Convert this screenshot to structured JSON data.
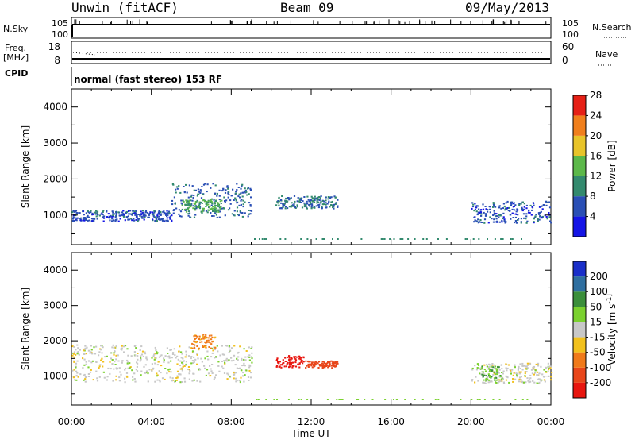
{
  "header": {
    "station": "Unwin (fitACF)",
    "beam": "Beam 09",
    "date": "09/May/2013"
  },
  "mode_text": "normal (fast stereo) 153 RF",
  "side_labels": {
    "nsky": "N.Sky",
    "freq_line1": "Freq.",
    "freq_line2": "[MHz]",
    "cpid": "CPID",
    "nsearch": "N.Search",
    "nave": "Nave"
  },
  "noise_panel": {
    "left_ticks": [
      "10^5",
      "10^0"
    ],
    "right_ticks": [
      "10^5",
      "10^0"
    ]
  },
  "freq_panel": {
    "left_ticks": [
      "18",
      "8"
    ],
    "right_ticks": [
      "60",
      "0"
    ]
  },
  "chart_data": [
    {
      "type": "heatmap",
      "panel": "power",
      "ylabel": "Slant Range [km]",
      "yticks": [
        "1000",
        "2000",
        "3000",
        "4000"
      ],
      "ylim": [
        180,
        4500
      ],
      "colorbar_label": "Power [dB]",
      "colorbar_ticks": [
        "4",
        "8",
        "12",
        "16",
        "20",
        "24",
        "28"
      ],
      "colorbar_colors": [
        "#1515e6",
        "#2a4fb5",
        "#338a6e",
        "#5cb84a",
        "#e8c42a",
        "#f07f1c",
        "#e62016"
      ],
      "regions": [
        {
          "t0": 0.0,
          "t1": 5.0,
          "r0": 850,
          "r1": 1150,
          "value": 6
        },
        {
          "t0": 5.0,
          "t1": 9.0,
          "r0": 950,
          "r1": 1900,
          "value": 7
        },
        {
          "t0": 5.5,
          "t1": 7.5,
          "r0": 1100,
          "r1": 1450,
          "value": 13
        },
        {
          "t0": 10.2,
          "t1": 13.3,
          "r0": 1200,
          "r1": 1550,
          "value": 8
        },
        {
          "t0": 20.0,
          "t1": 24.0,
          "r0": 800,
          "r1": 1400,
          "value": 6
        }
      ]
    },
    {
      "type": "heatmap",
      "panel": "velocity",
      "ylabel": "Slant Range [km]",
      "yticks": [
        "1000",
        "2000",
        "3000",
        "4000"
      ],
      "ylim": [
        180,
        4500
      ],
      "colorbar_label": "Velocity [m s^-1]",
      "colorbar_ticks": [
        "200",
        "100",
        "50",
        "15",
        "-15",
        "-50",
        "-100",
        "-200"
      ],
      "colorbar_colors": [
        "#1a2fc9",
        "#2f6fa0",
        "#3b8f3b",
        "#7bd12f",
        "#c8c8c8",
        "#f2c11d",
        "#f07a1a",
        "#e8461a",
        "#e8160f"
      ],
      "regions": [
        {
          "t0": 0.0,
          "t1": 9.0,
          "r0": 850,
          "r1": 1900,
          "value": 0
        },
        {
          "t0": 6.0,
          "t1": 7.2,
          "r0": 1800,
          "r1": 2200,
          "value": -40
        },
        {
          "t0": 10.2,
          "t1": 11.6,
          "r0": 1250,
          "r1": 1600,
          "value": -220
        },
        {
          "t0": 11.6,
          "t1": 13.3,
          "r0": 1250,
          "r1": 1450,
          "value": -90
        },
        {
          "t0": 20.0,
          "t1": 24.0,
          "r0": 800,
          "r1": 1400,
          "value": 0
        },
        {
          "t0": 20.5,
          "t1": 21.5,
          "r0": 900,
          "r1": 1300,
          "value": 30
        }
      ]
    }
  ],
  "x_axis": {
    "label": "Time UT",
    "ticks": [
      "00:00",
      "04:00",
      "08:00",
      "12:00",
      "16:00",
      "20:00",
      "00:00"
    ],
    "range_hours": [
      0,
      24
    ]
  }
}
